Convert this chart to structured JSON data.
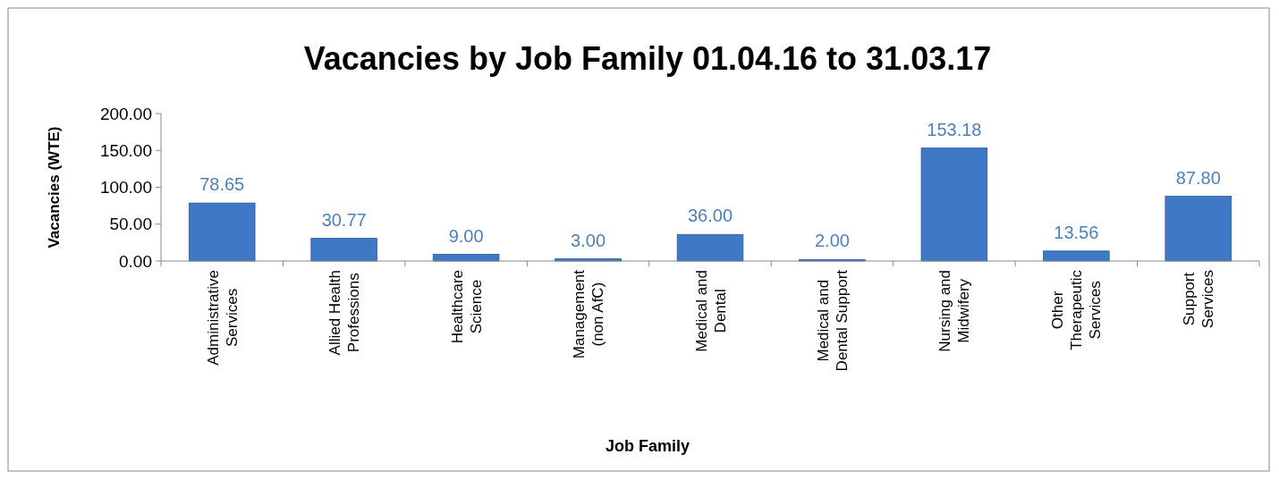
{
  "chart_data": {
    "type": "bar",
    "title": "Vacancies by Job Family 01.04.16 to 31.03.17",
    "xlabel": "Job Family",
    "ylabel": "Vacancies (WTE)",
    "categories": [
      "Administrative Services",
      "Allied Health Professions",
      "Healthcare Science",
      "Management (non AfC)",
      "Medical and Dental",
      "Medical and Dental Support",
      "Nursing and Midwifery",
      "Other Therapeutic Services",
      "Support Services"
    ],
    "values": [
      78.65,
      30.77,
      9.0,
      3.0,
      36.0,
      2.0,
      153.18,
      13.56,
      87.8
    ],
    "value_labels": [
      "78.65",
      "30.77",
      "9.00",
      "3.00",
      "36.00",
      "2.00",
      "153.18",
      "13.56",
      "87.80"
    ],
    "color": "#3f78c5",
    "ylim": [
      0,
      200
    ],
    "yticks": [
      {
        "value": 0,
        "label": "0.00"
      },
      {
        "value": 50,
        "label": "50.00"
      },
      {
        "value": 100,
        "label": "100.00"
      },
      {
        "value": 150,
        "label": "150.00"
      },
      {
        "value": 200,
        "label": "200.00"
      }
    ],
    "grid": false
  }
}
